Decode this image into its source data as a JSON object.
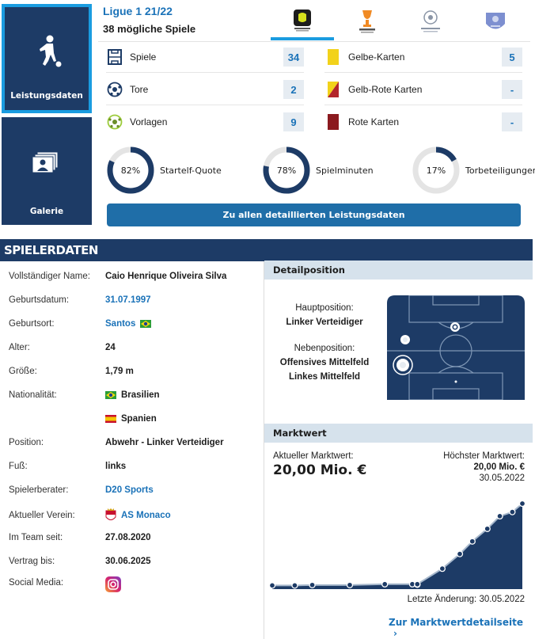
{
  "tiles": {
    "performance_label": "Leistungsdaten",
    "gallery_label": "Galerie"
  },
  "competition": {
    "title": "Ligue 1 21/22",
    "subtitle": "38 mögliche Spiele",
    "tabs": [
      {
        "name": "Ligue 1",
        "icon": "ligue1-logo"
      },
      {
        "name": "Europa League",
        "icon": "europa-league-logo"
      },
      {
        "name": "Champions League",
        "icon": "champions-league-logo"
      },
      {
        "name": "FFF",
        "icon": "fff-logo"
      }
    ]
  },
  "stats": {
    "left": [
      {
        "label": "Spiele",
        "value": "34",
        "icon": "pitch-icon"
      },
      {
        "label": "Tore",
        "value": "2",
        "icon": "ball-icon"
      },
      {
        "label": "Vorlagen",
        "value": "9",
        "icon": "assist-ball-icon"
      }
    ],
    "right": [
      {
        "label": "Gelbe-Karten",
        "value": "5",
        "color": "#f2d21b"
      },
      {
        "label": "Gelb-Rote Karten",
        "value": "-",
        "color": "#f2d21b|#b3262b"
      },
      {
        "label": "Rote Karten",
        "value": "-",
        "color": "#8b1a1f"
      }
    ],
    "donuts": [
      {
        "pct_text": "82%",
        "value": 0.82,
        "label": "Startelf-Quote"
      },
      {
        "pct_text": "78%",
        "value": 0.78,
        "label": "Spielminuten"
      },
      {
        "pct_text": "17%",
        "value": 0.17,
        "label": "Torbeteiligungen"
      }
    ],
    "detail_button": "Zu allen detaillierten Leistungsdaten"
  },
  "player": {
    "header": "SPIELERDATEN",
    "full_name_key": "Vollständiger Name:",
    "full_name": "Caio Henrique Oliveira Silva",
    "dob_key": "Geburtsdatum:",
    "dob": "31.07.1997",
    "pob_key": "Geburtsort:",
    "pob": "Santos",
    "age_key": "Alter:",
    "age": "24",
    "height_key": "Größe:",
    "height": "1,79 m",
    "nation_key": "Nationalität:",
    "nation1": "Brasilien",
    "nation2": "Spanien",
    "position_key": "Position:",
    "position": "Abwehr - Linker Verteidiger",
    "foot_key": "Fuß:",
    "foot": "links",
    "agent_key": "Spielerberater:",
    "agent": "D20 Sports",
    "club_key": "Aktueller Verein:",
    "club": "AS Monaco",
    "joined_key": "Im Team seit:",
    "joined": "27.08.2020",
    "contract_key": "Vertrag bis:",
    "contract": "30.06.2025",
    "social_key": "Social Media:"
  },
  "detail_position": {
    "header": "Detailposition",
    "main_key": "Hauptposition:",
    "main": "Linker Verteidiger",
    "sub_key": "Nebenposition:",
    "sub1": "Offensives Mittelfeld",
    "sub2": "Linkes Mittelfeld"
  },
  "market_value": {
    "header": "Marktwert",
    "current_key": "Aktueller Marktwert:",
    "current": "20,00 Mio. €",
    "max_key": "Höchster Marktwert:",
    "max": "20,00 Mio. €",
    "max_date": "30.05.2022",
    "last_change": "Letzte Änderung: 30.05.2022",
    "link": "Zur Marktwertdetailseite",
    "series_values_mio": [
      0.5,
      0.5,
      0.6,
      0.6,
      0.8,
      0.8,
      0.7,
      0.8,
      4.5,
      8,
      11,
      14,
      17,
      18,
      20
    ]
  },
  "colors": {
    "navy": "#1d3b66",
    "accent": "#1a9ce0",
    "link": "#1a72b8",
    "button": "#1f6ea8"
  }
}
